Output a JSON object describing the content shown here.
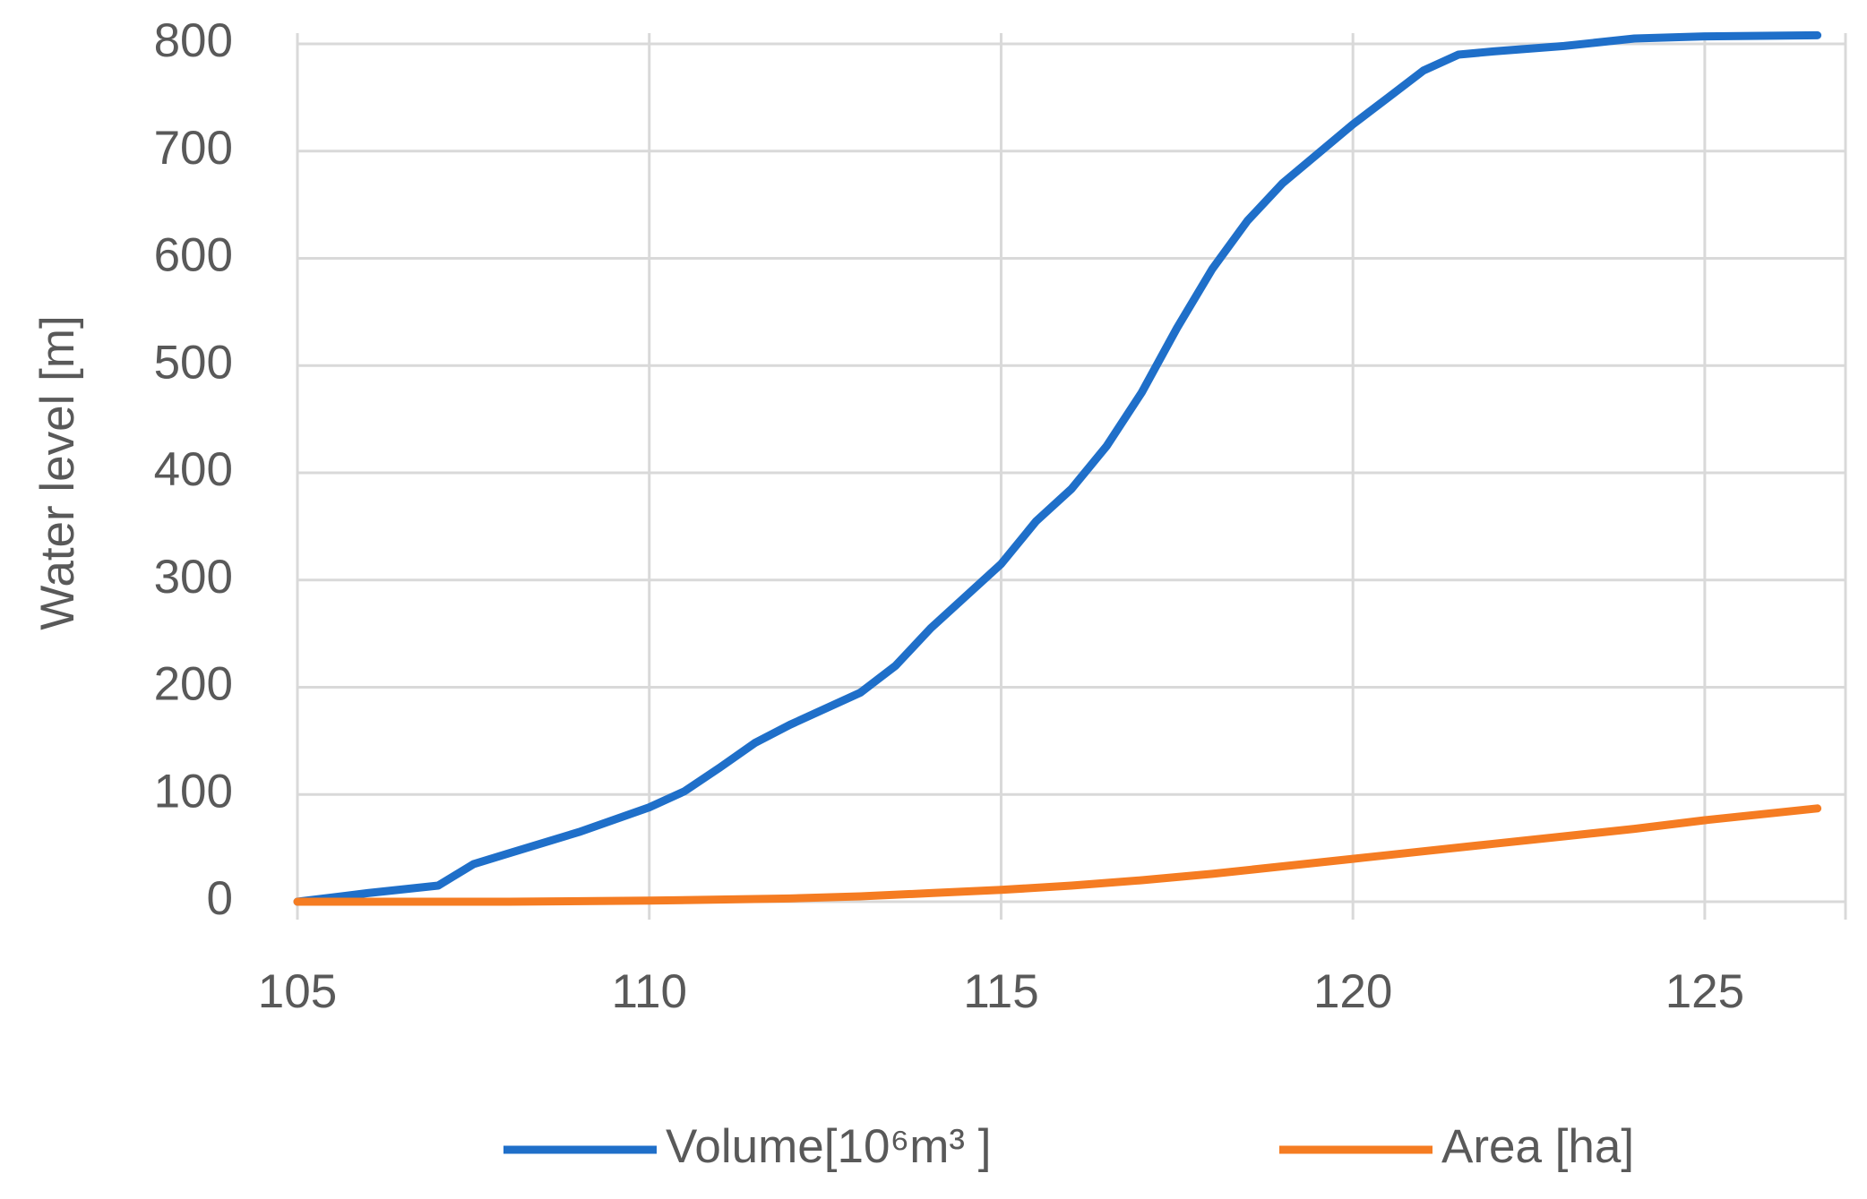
{
  "chart_data": {
    "type": "line",
    "y_label": "Water level [m]",
    "xlim": [
      105,
      127
    ],
    "xticks": [
      105,
      110,
      115,
      120,
      125
    ],
    "ylim": [
      0,
      800
    ],
    "yticks": [
      0,
      100,
      200,
      300,
      400,
      500,
      600,
      700,
      800
    ],
    "grid": true,
    "legend": "bottom",
    "series": [
      {
        "name": "Volume[10⁶m³ ]",
        "color": "#1f6fc9",
        "x": [
          105,
          106,
          107,
          107.5,
          108,
          109,
          110,
          110.5,
          111,
          111.5,
          112,
          113,
          113.5,
          114,
          114.5,
          115,
          115.5,
          116,
          116.5,
          117,
          117.5,
          118,
          118.5,
          119,
          120,
          120.5,
          121,
          121.5,
          122,
          123,
          124,
          125,
          126.6
        ],
        "values": [
          0,
          8,
          15,
          35,
          45,
          65,
          88,
          103,
          125,
          148,
          165,
          195,
          220,
          255,
          285,
          315,
          355,
          385,
          425,
          475,
          535,
          590,
          635,
          670,
          725,
          750,
          775,
          790,
          793,
          798,
          805,
          807,
          808
        ]
      },
      {
        "name": "Area [ha]",
        "color": "#f57c22",
        "x": [
          105,
          108,
          110,
          112,
          113,
          114,
          115,
          116,
          117,
          118,
          119,
          120,
          121,
          122,
          123,
          124,
          125,
          126.6
        ],
        "values": [
          0,
          0,
          1,
          3,
          5,
          8,
          11,
          15,
          20,
          26,
          33,
          40,
          47,
          54,
          61,
          68,
          76,
          87
        ]
      }
    ]
  }
}
